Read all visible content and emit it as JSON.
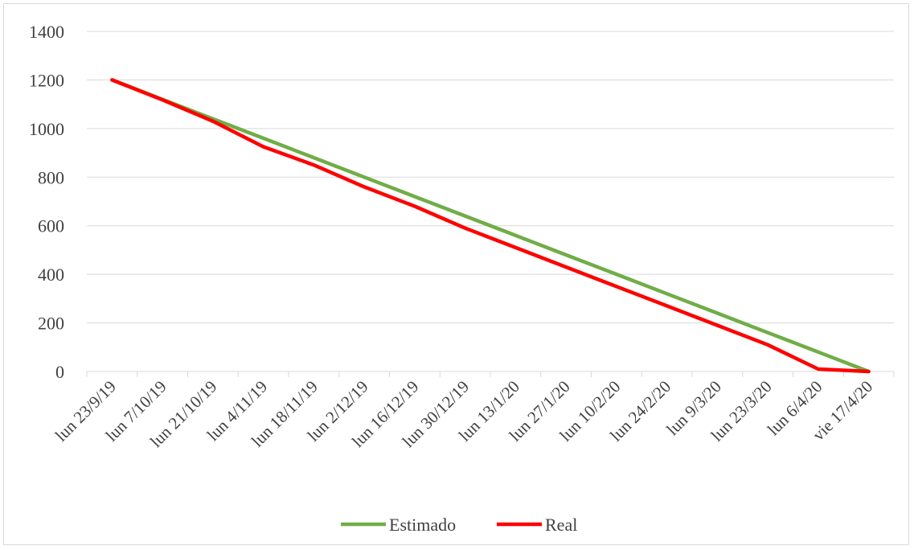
{
  "chart_data": {
    "type": "line",
    "title": "",
    "xlabel": "",
    "ylabel": "",
    "ylim": [
      0,
      1400
    ],
    "yticks": [
      0,
      200,
      400,
      600,
      800,
      1000,
      1200,
      1400
    ],
    "categories": [
      "lun 23/9/19",
      "lun 7/10/19",
      "lun 21/10/19",
      "lun 4/11/19",
      "lun 18/11/19",
      "lun 2/12/19",
      "lun 16/12/19",
      "lun 30/12/19",
      "lun 13/1/20",
      "lun 27/1/20",
      "lun 10/2/20",
      "lun 24/2/20",
      "lun 9/3/20",
      "lun 23/3/20",
      "lun 6/4/20",
      "vie 17/4/20"
    ],
    "grid": true,
    "legend_position": "bottom",
    "series": [
      {
        "name": "Estimado",
        "color": "#70ad47",
        "values": [
          1200,
          1120,
          1040,
          960,
          880,
          800,
          720,
          640,
          560,
          480,
          400,
          320,
          240,
          160,
          80,
          0
        ]
      },
      {
        "name": "Real",
        "color": "#ff0000",
        "values": [
          1200,
          1118,
          1030,
          925,
          850,
          760,
          680,
          590,
          510,
          430,
          350,
          270,
          190,
          110,
          10,
          0
        ]
      }
    ]
  }
}
